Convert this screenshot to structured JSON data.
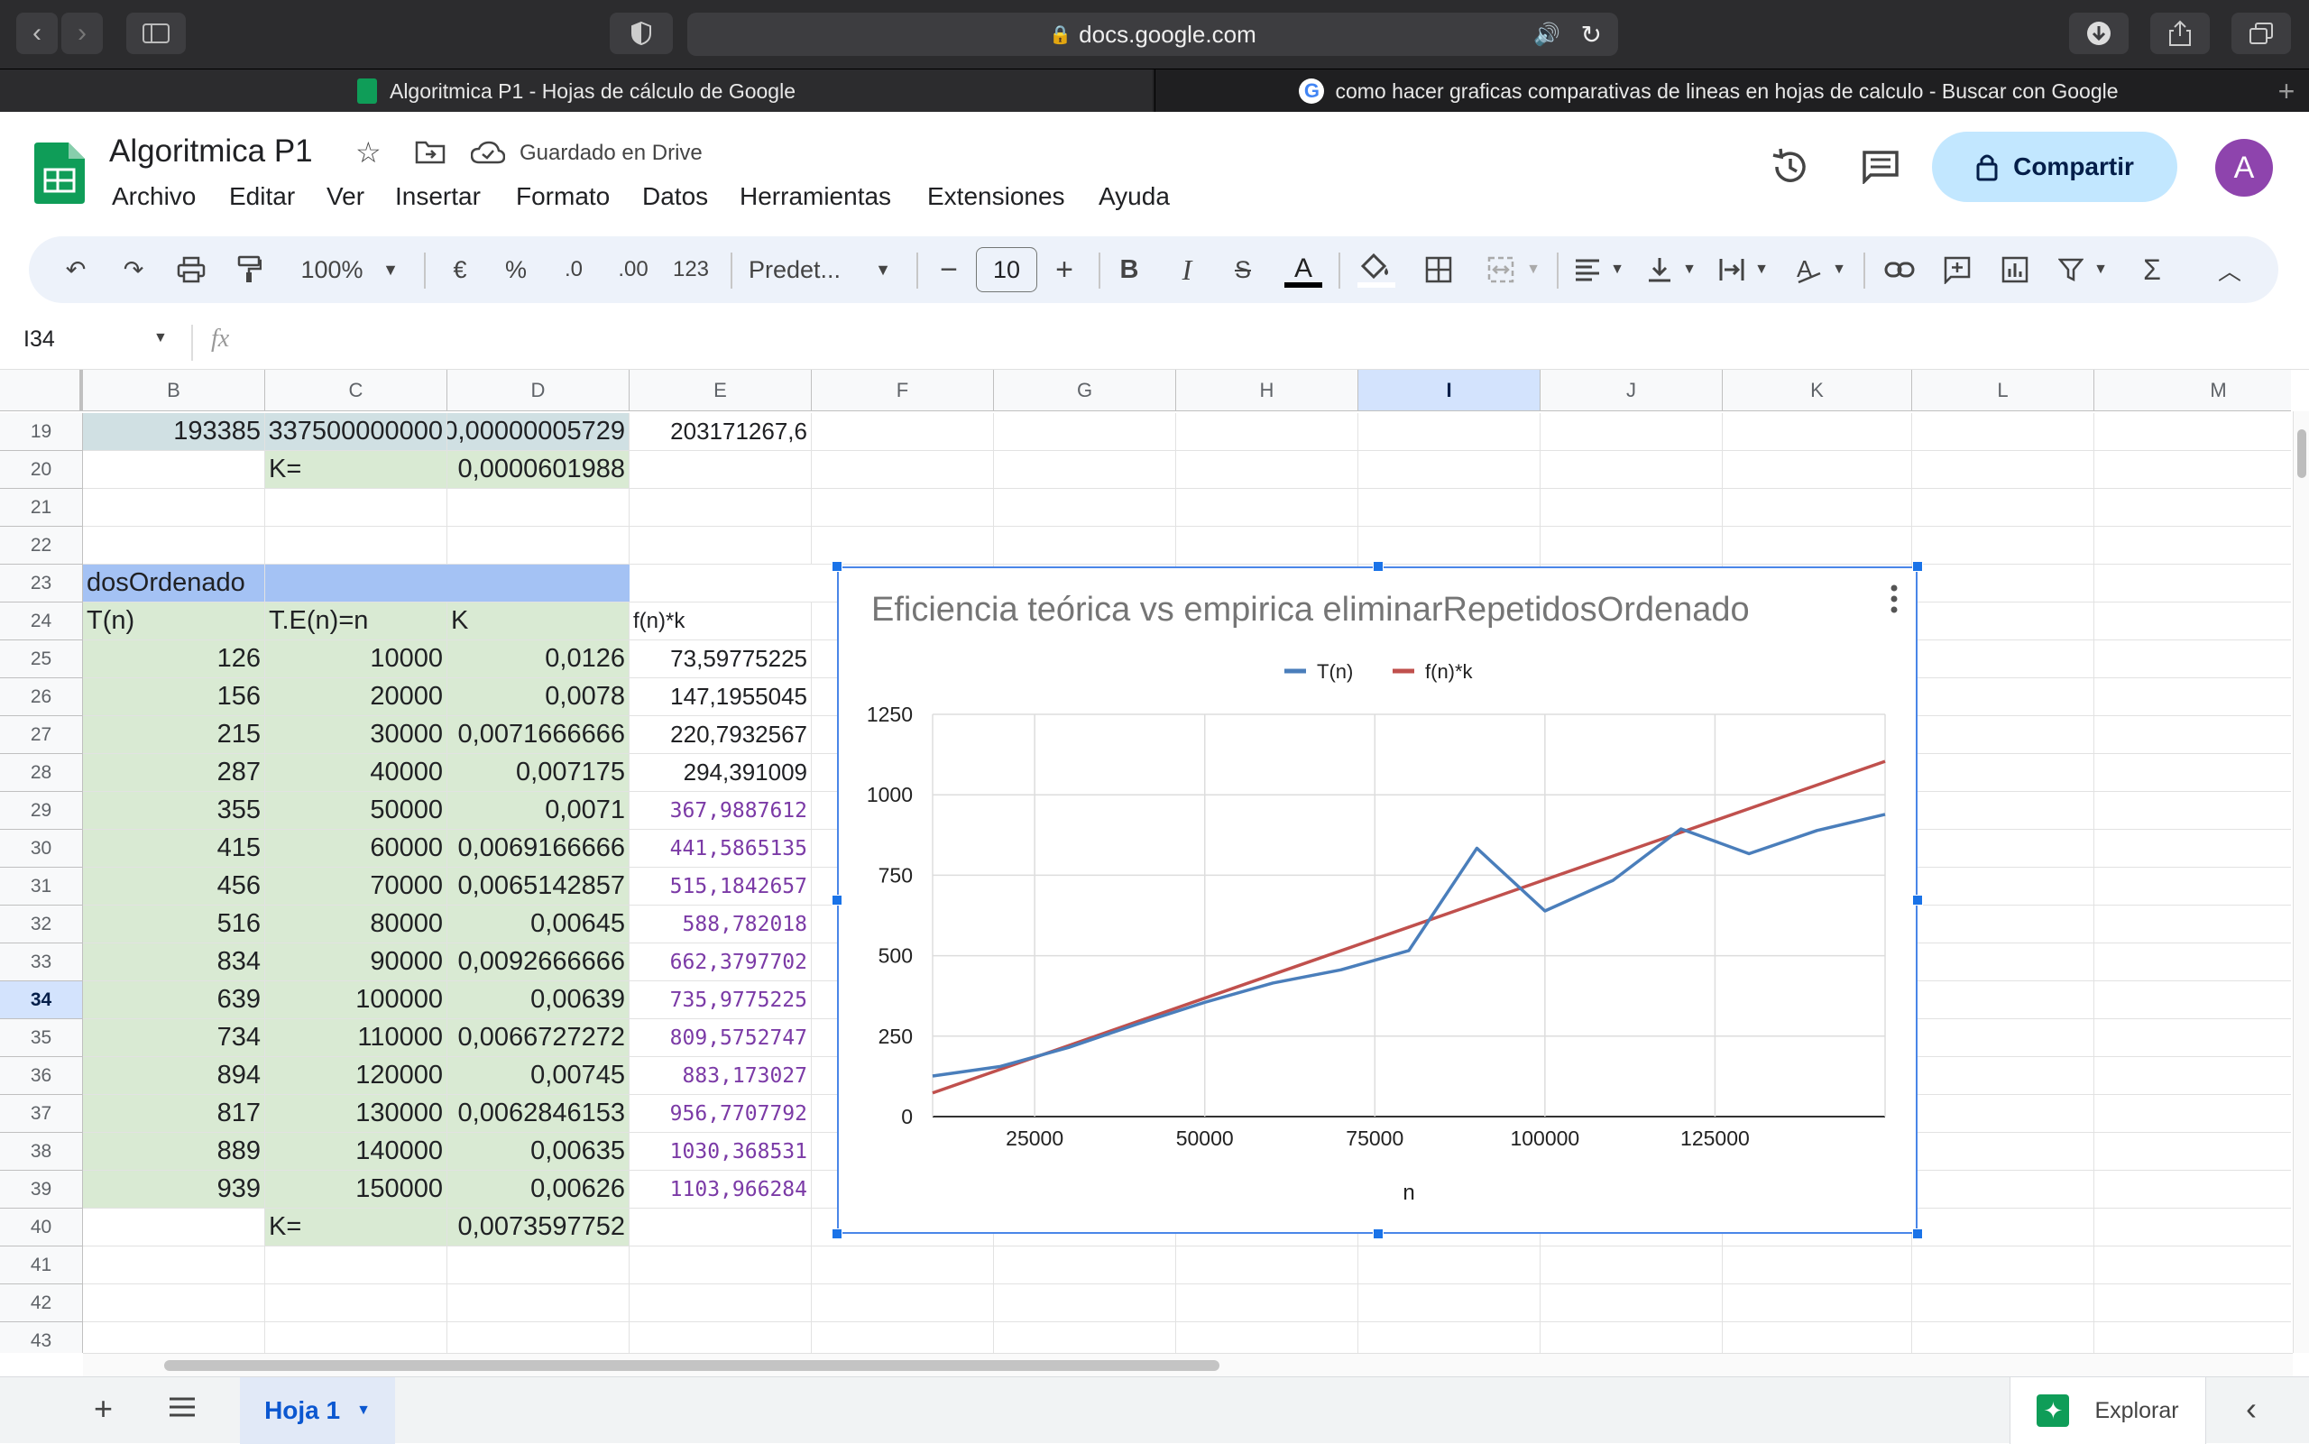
{
  "browser": {
    "url": "docs.google.com",
    "tabs": [
      {
        "title": "Algoritmica P1 - Hojas de cálculo de Google",
        "active": true
      },
      {
        "title": "como hacer graficas comparativas de lineas en hojas de calculo - Buscar con Google",
        "active": false
      }
    ]
  },
  "app": {
    "title": "Algoritmica P1",
    "save_status": "Guardado en Drive",
    "menu": [
      "Archivo",
      "Editar",
      "Ver",
      "Insertar",
      "Formato",
      "Datos",
      "Herramientas",
      "Extensiones",
      "Ayuda"
    ],
    "share_label": "Compartir",
    "avatar_letter": "A",
    "brand_green": "#0f9d58",
    "share_bg": "#c2e7ff"
  },
  "toolbar": {
    "zoom": "100%",
    "currency": "€",
    "percent": "%",
    "dec_less": ".0",
    "dec_more": ".00",
    "number_format": "123",
    "font": "Predet...",
    "font_size": "10"
  },
  "formula_bar": {
    "cell_ref": "I34",
    "fx": "fx",
    "value": ""
  },
  "columns": [
    "B",
    "C",
    "D",
    "E",
    "F",
    "G",
    "H",
    "I",
    "J",
    "K",
    "L",
    "M"
  ],
  "selected_column": "I",
  "selected_row": "34",
  "rows": [
    {
      "n": "19",
      "B": "193385",
      "C": "337500000000",
      "D": "0,00000005729",
      "E": "203171267,6"
    },
    {
      "n": "20",
      "B": "",
      "C": "K=",
      "D": "0,0000601988",
      "E": ""
    },
    {
      "n": "21",
      "B": "",
      "C": "",
      "D": "",
      "E": ""
    },
    {
      "n": "22",
      "B": "",
      "C": "",
      "D": "",
      "E": ""
    },
    {
      "n": "23",
      "B": "dosOrdenado",
      "C": "",
      "D": "",
      "E": ""
    },
    {
      "n": "24",
      "B": "T(n)",
      "C": "T.E(n)=n",
      "D": "K",
      "E": "f(n)*k"
    },
    {
      "n": "25",
      "B": "126",
      "C": "10000",
      "D": "0,0126",
      "E": "73,59775225"
    },
    {
      "n": "26",
      "B": "156",
      "C": "20000",
      "D": "0,0078",
      "E": "147,1955045"
    },
    {
      "n": "27",
      "B": "215",
      "C": "30000",
      "D": "0,0071666666",
      "E": "220,7932567"
    },
    {
      "n": "28",
      "B": "287",
      "C": "40000",
      "D": "0,007175",
      "E": "294,391009"
    },
    {
      "n": "29",
      "B": "355",
      "C": "50000",
      "D": "0,0071",
      "E": "367,9887612"
    },
    {
      "n": "30",
      "B": "415",
      "C": "60000",
      "D": "0,0069166666",
      "E": "441,5865135"
    },
    {
      "n": "31",
      "B": "456",
      "C": "70000",
      "D": "0,0065142857",
      "E": "515,1842657"
    },
    {
      "n": "32",
      "B": "516",
      "C": "80000",
      "D": "0,00645",
      "E": "588,782018"
    },
    {
      "n": "33",
      "B": "834",
      "C": "90000",
      "D": "0,0092666666",
      "E": "662,3797702"
    },
    {
      "n": "34",
      "B": "639",
      "C": "100000",
      "D": "0,00639",
      "E": "735,9775225"
    },
    {
      "n": "35",
      "B": "734",
      "C": "110000",
      "D": "0,0066727272",
      "E": "809,5752747"
    },
    {
      "n": "36",
      "B": "894",
      "C": "120000",
      "D": "0,00745",
      "E": "883,173027"
    },
    {
      "n": "37",
      "B": "817",
      "C": "130000",
      "D": "0,0062846153",
      "E": "956,7707792"
    },
    {
      "n": "38",
      "B": "889",
      "C": "140000",
      "D": "0,00635",
      "E": "1030,368531"
    },
    {
      "n": "39",
      "B": "939",
      "C": "150000",
      "D": "0,00626",
      "E": "1103,966284"
    },
    {
      "n": "40",
      "B": "",
      "C": "K=",
      "D": "0,0073597752",
      "E": ""
    },
    {
      "n": "41",
      "B": "",
      "C": "",
      "D": "",
      "E": ""
    },
    {
      "n": "42",
      "B": "",
      "C": "",
      "D": "",
      "E": ""
    },
    {
      "n": "43",
      "B": "",
      "C": "",
      "D": "",
      "E": ""
    }
  ],
  "chart_data": {
    "type": "line",
    "title": "Eficiencia teórica vs empirica eliminarRepetidosOrdenado",
    "xlabel": "n",
    "ylabel": "",
    "x": [
      10000,
      20000,
      30000,
      40000,
      50000,
      60000,
      70000,
      80000,
      90000,
      100000,
      110000,
      120000,
      130000,
      140000,
      150000
    ],
    "xlim": [
      10000,
      150000
    ],
    "ylim": [
      0,
      1250
    ],
    "xticks": [
      25000,
      50000,
      75000,
      100000,
      125000
    ],
    "yticks": [
      0,
      250,
      500,
      750,
      1000,
      1250
    ],
    "series": [
      {
        "name": "T(n)",
        "color": "#4a7ebb",
        "values": [
          126,
          156,
          215,
          287,
          355,
          415,
          456,
          516,
          834,
          639,
          734,
          894,
          817,
          889,
          939
        ]
      },
      {
        "name": "f(n)*k",
        "color": "#c0504d",
        "values": [
          73.6,
          147.2,
          220.8,
          294.4,
          368.0,
          441.6,
          515.2,
          588.8,
          662.4,
          736.0,
          809.6,
          883.2,
          956.8,
          1030.4,
          1104.0
        ]
      }
    ],
    "legend": "top",
    "grid": true
  },
  "sheet_tab": "Hoja 1",
  "explore_label": "Explorar"
}
